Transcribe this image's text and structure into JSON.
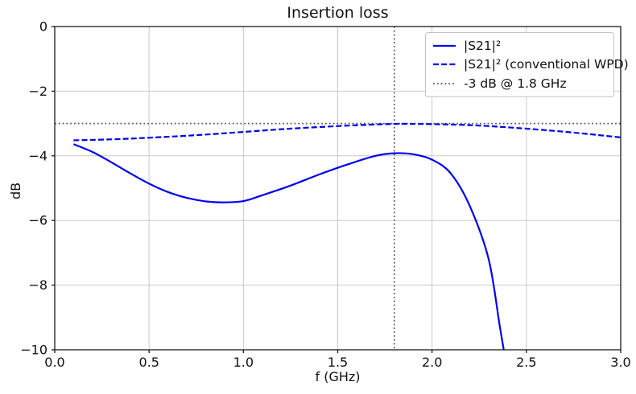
{
  "figure": {
    "title": "Insertion loss",
    "xlabel": "f (GHz)",
    "ylabel": "dB"
  },
  "colors": {
    "curve_blue": "#0000ee",
    "reference_gray": "#555555",
    "grid_gray": "#c9c9c9",
    "text": "#111111",
    "background": "#ffffff"
  },
  "legend": {
    "items": [
      {
        "label": "|S21|²",
        "style": "solid",
        "color": "#0000ee"
      },
      {
        "label": "|S21|² (conventional WPD)",
        "style": "dashed",
        "color": "#0000ee"
      },
      {
        "label": "-3 dB @ 1.8 GHz",
        "style": "dotted",
        "color": "#555555"
      }
    ]
  },
  "chart_data": {
    "type": "line",
    "title": "Insertion loss",
    "xlabel": "f (GHz)",
    "ylabel": "dB",
    "xlim": [
      0.0,
      3.0
    ],
    "ylim": [
      -10,
      0
    ],
    "grid": true,
    "legend_position": "upper right",
    "xticks": [
      "0.0",
      "0.5",
      "1.0",
      "1.5",
      "2.0",
      "2.5",
      "3.0"
    ],
    "xtick_values": [
      0.0,
      0.5,
      1.0,
      1.5,
      2.0,
      2.5,
      3.0
    ],
    "yticks": [
      "0",
      "−2",
      "−4",
      "−6",
      "−8",
      "−10"
    ],
    "ytick_values": [
      0,
      -2,
      -4,
      -6,
      -8,
      -10
    ],
    "series": [
      {
        "name": "|S21|²",
        "style": "solid",
        "color": "#0000ee",
        "points": [
          [
            0.1,
            -3.64
          ],
          [
            0.2,
            -3.88
          ],
          [
            0.3,
            -4.2
          ],
          [
            0.4,
            -4.54
          ],
          [
            0.5,
            -4.86
          ],
          [
            0.6,
            -5.12
          ],
          [
            0.7,
            -5.3
          ],
          [
            0.8,
            -5.41
          ],
          [
            0.9,
            -5.44
          ],
          [
            1.0,
            -5.4
          ],
          [
            1.1,
            -5.22
          ],
          [
            1.25,
            -4.92
          ],
          [
            1.4,
            -4.58
          ],
          [
            1.55,
            -4.27
          ],
          [
            1.7,
            -4.0
          ],
          [
            1.8,
            -3.92
          ],
          [
            1.9,
            -3.95
          ],
          [
            2.0,
            -4.12
          ],
          [
            2.1,
            -4.55
          ],
          [
            2.2,
            -5.55
          ],
          [
            2.3,
            -7.2
          ],
          [
            2.36,
            -9.3
          ],
          [
            2.4,
            -10.7
          ]
        ]
      },
      {
        "name": "|S21|² (conventional WPD)",
        "style": "dashed",
        "color": "#0000ee",
        "points": [
          [
            0.1,
            -3.52
          ],
          [
            0.3,
            -3.49
          ],
          [
            0.5,
            -3.44
          ],
          [
            0.75,
            -3.36
          ],
          [
            1.0,
            -3.26
          ],
          [
            1.25,
            -3.16
          ],
          [
            1.5,
            -3.08
          ],
          [
            1.7,
            -3.03
          ],
          [
            1.85,
            -3.01
          ],
          [
            2.0,
            -3.02
          ],
          [
            2.15,
            -3.04
          ],
          [
            2.3,
            -3.08
          ],
          [
            2.5,
            -3.16
          ],
          [
            2.75,
            -3.28
          ],
          [
            3.0,
            -3.43
          ]
        ]
      }
    ],
    "reference_lines": [
      {
        "name": "-3 dB @ 1.8 GHz",
        "orientation": "horizontal",
        "value": -3.0,
        "style": "dotted",
        "color": "#555555"
      },
      {
        "name": "1.8 GHz marker",
        "orientation": "vertical",
        "value": 1.8,
        "style": "dotted",
        "color": "#555555"
      }
    ]
  }
}
